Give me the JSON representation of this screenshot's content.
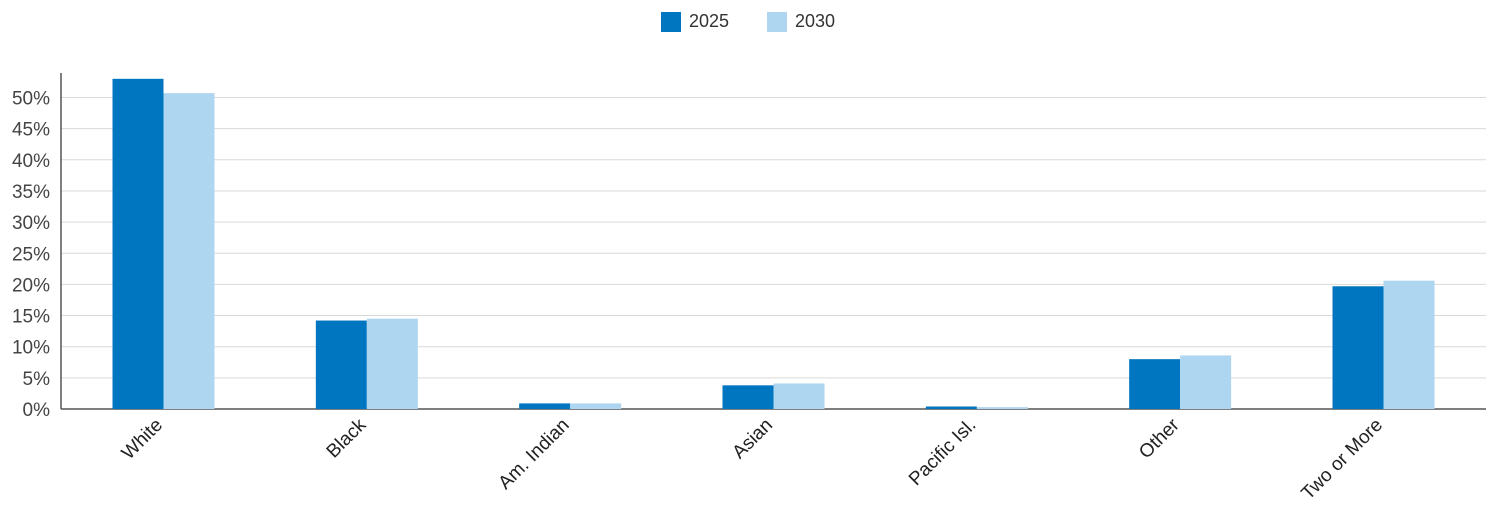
{
  "chart_data": {
    "type": "bar",
    "categories": [
      "White",
      "Black",
      "Am. Indian",
      "Asian",
      "Pacific Isl.",
      "Other",
      "Two or More"
    ],
    "series": [
      {
        "name": "2025",
        "color": "#0076c0",
        "values": [
          53.0,
          14.2,
          0.9,
          3.8,
          0.4,
          8.0,
          19.7
        ]
      },
      {
        "name": "2030",
        "color": "#aed6f1",
        "values": [
          50.7,
          14.5,
          0.9,
          4.1,
          0.3,
          8.6,
          20.6
        ]
      }
    ],
    "y_ticks": [
      "0%",
      "5%",
      "10%",
      "15%",
      "20%",
      "25%",
      "30%",
      "35%",
      "40%",
      "45%",
      "50%"
    ],
    "ylim": [
      0,
      54
    ],
    "grid": true,
    "legend_position": "top-center"
  }
}
